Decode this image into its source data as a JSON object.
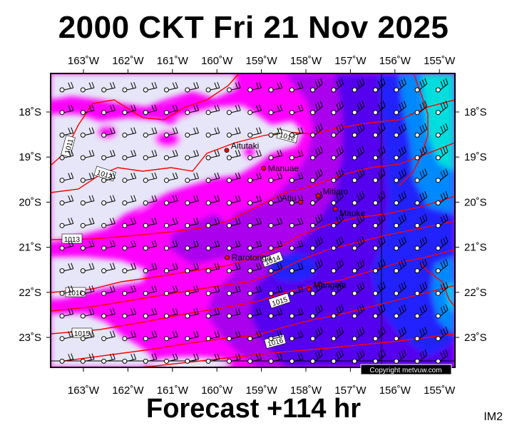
{
  "title": "2000 CKT Fri 21 Nov 2025",
  "footer": "Forecast +114 hr",
  "corner_label": "IM2",
  "copyright": "Copyright metvuw.com",
  "colors": {
    "calm": "#e6e6f8",
    "light": "#ff00ff",
    "moderate": "#aa00ee",
    "strong": "#5500ee",
    "stronger": "#2222ff",
    "strongest": "#00aaff",
    "extreme": "#00e6e6",
    "isobar": "#ff0000",
    "island": "#ff0000"
  },
  "lon_labels": [
    "163˚W",
    "162˚W",
    "161˚W",
    "160˚W",
    "159˚W",
    "158˚W",
    "157˚W",
    "156˚W",
    "155˚W"
  ],
  "lat_labels": [
    "18˚S",
    "19˚S",
    "20˚S",
    "21˚S",
    "22˚S",
    "23˚S"
  ],
  "places": [
    {
      "name": "Aitutaki",
      "lon": -159.78,
      "lat": -18.85
    },
    {
      "name": "Manuae",
      "lon": -158.95,
      "lat": -19.25
    },
    {
      "name": "Mitiaro",
      "lon": -157.72,
      "lat": -19.86
    },
    {
      "name": "Atiu",
      "lon": -158.12,
      "lat": -20.0
    },
    {
      "name": "Mauke",
      "lon": -157.34,
      "lat": -20.15
    },
    {
      "name": "Rarotonga",
      "lon": -159.77,
      "lat": -21.23
    },
    {
      "name": "Mangaia",
      "lon": -157.93,
      "lat": -21.93
    }
  ],
  "isobar_labels": [
    "1011",
    "1012",
    "1012",
    "1013",
    "1010",
    "1014",
    "1015",
    "1015",
    "1016"
  ]
}
